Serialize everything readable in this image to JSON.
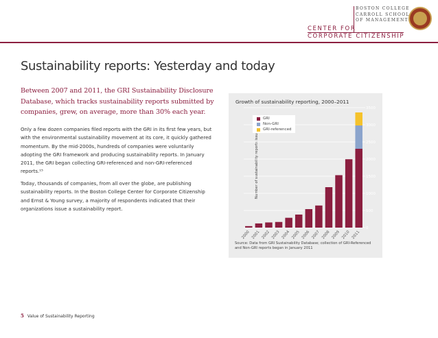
{
  "header": {
    "college_lines": [
      "BOSTON COLLEGE",
      "CARROLL SCHOOL",
      "OF MANAGEMENT"
    ],
    "center_line": "CENTER FOR",
    "corp_line": "CORPORATE CITIZENSHIP"
  },
  "main": {
    "title": "Sustainability reports: Yesterday and today",
    "lead": "Between 2007 and 2011, the GRI Sustainability Disclosure Database, which tracks sustainability reports submitted by companies, grew, on average, more than 30% each year.",
    "paragraph1": "Only a few dozen companies filed reports with the GRI in its first few years, but with the environmental sustainability movement at its core, it quickly gathered momentum. By the mid-2000s, hundreds of companies were voluntarily adopting the GRI framework and producing sustainability reports. In January 2011, the GRI began collecting GRI-referenced and non-GRI-referenced reports.¹⁵",
    "paragraph2": "Today, thousands of companies, from all over the globe, are publishing sustainability reports. In the Boston College Center for Corporate Citizenship and Ernst & Young survey, a majority of respondents indicated that their organizations issue a sustainability report."
  },
  "chart_data": {
    "type": "bar",
    "stacked": true,
    "title": "Growth of sustainability reporting, 2000–2011",
    "xlabel": "",
    "ylabel": "Number of sustainability reports issued",
    "ylim": [
      0,
      3500
    ],
    "yticks": [
      0,
      500,
      1000,
      1500,
      2000,
      2500,
      3000,
      3500
    ],
    "categories": [
      "2000",
      "2001",
      "2002",
      "2003",
      "2004",
      "2005",
      "2006",
      "2007",
      "2008",
      "2009",
      "2010",
      "2011"
    ],
    "series": [
      {
        "name": "GRI",
        "color": "#8b1e3f",
        "values": [
          44,
          122,
          151,
          165,
          287,
          381,
          540,
          645,
          1180,
          1530,
          1995,
          2300
        ]
      },
      {
        "name": "Non-GRI",
        "color": "#8ba4cc",
        "values": [
          0,
          0,
          0,
          0,
          0,
          0,
          0,
          0,
          0,
          0,
          0,
          680
        ]
      },
      {
        "name": "GRI-referenced",
        "color": "#f5c22b",
        "values": [
          0,
          0,
          0,
          0,
          0,
          0,
          0,
          0,
          0,
          0,
          0,
          380
        ]
      }
    ],
    "legend": "top-left",
    "source": "Source: Data from GRI Sustainability Database; collection of GRI-Referenced and Non-GRI reports began in January 2011"
  },
  "footer": {
    "page_number": "5",
    "text": "Value of Sustainability Reporting"
  }
}
